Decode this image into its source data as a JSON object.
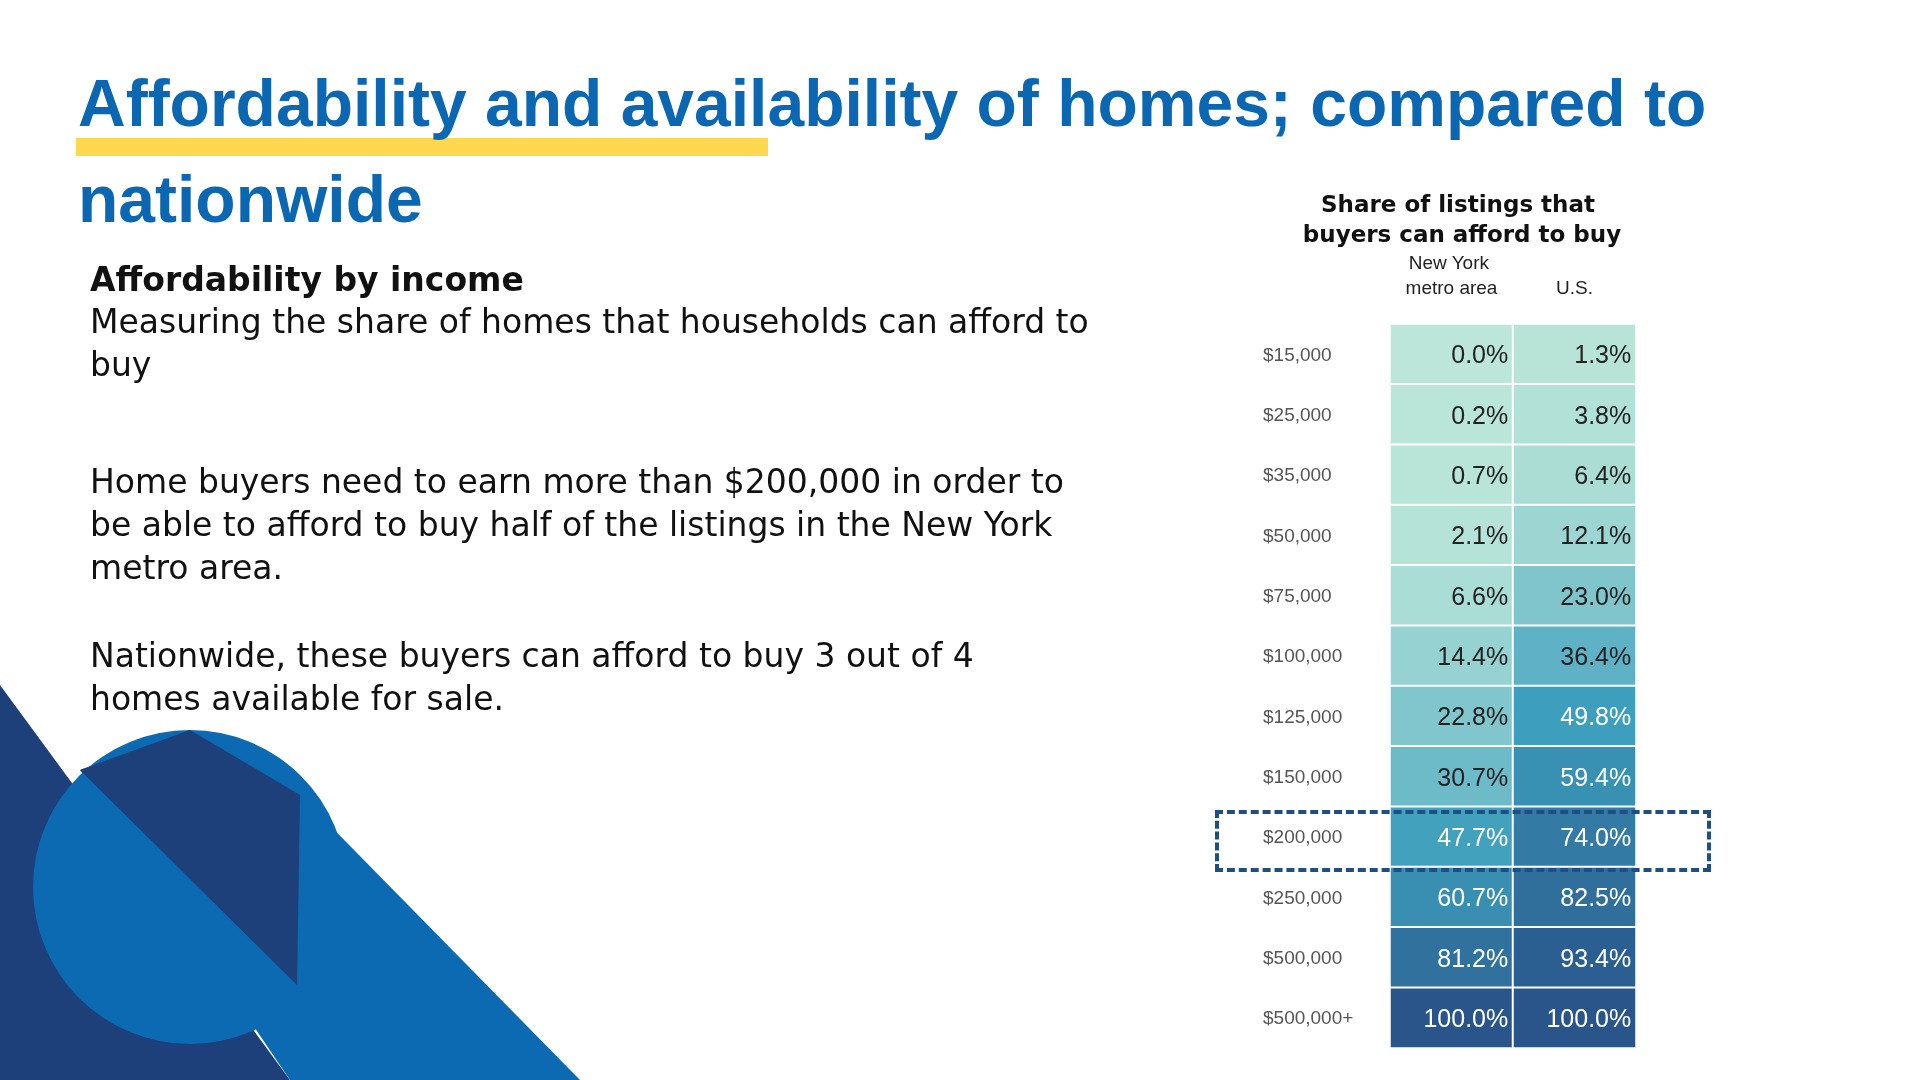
{
  "chart_data": {
    "type": "heatmap",
    "title": "Affordability and availability of homes; compared to nationwide",
    "subtitle": "Share of listings that buyers can afford to buy",
    "annotations": [
      "Affordability by income",
      "Measuring the share of homes that households can afford to buy",
      "Home buyers need to earn more than $200,000 in order to be able to afford to buy half of the listings in the New York metro area.",
      "Nationwide, these buyers can afford to buy 3 out of 4 homes available for sale."
    ],
    "categories": [
      "New York metro area",
      "U.S."
    ],
    "y_categories": [
      "$15,000",
      "$25,000",
      "$35,000",
      "$50,000",
      "$75,000",
      "$100,000",
      "$125,000",
      "$150,000",
      "$200,000",
      "$250,000",
      "$500,000",
      "$500,000+"
    ],
    "cells": [
      [
        0.0,
        1.3
      ],
      [
        0.2,
        3.8
      ],
      [
        0.7,
        6.4
      ],
      [
        2.1,
        12.1
      ],
      [
        6.6,
        23.0
      ],
      [
        14.4,
        36.4
      ],
      [
        22.8,
        49.8
      ],
      [
        30.7,
        59.4
      ],
      [
        47.7,
        74.0
      ],
      [
        60.7,
        82.5
      ],
      [
        81.2,
        93.4
      ],
      [
        100.0,
        100.0
      ]
    ],
    "cell_labels": [
      [
        "0.0%",
        "1.3%"
      ],
      [
        "0.2%",
        "3.8%"
      ],
      [
        "0.7%",
        "6.4%"
      ],
      [
        "2.1%",
        "12.1%"
      ],
      [
        "6.6%",
        "23.0%"
      ],
      [
        "14.4%",
        "36.4%"
      ],
      [
        "22.8%",
        "49.8%"
      ],
      [
        "30.7%",
        "59.4%"
      ],
      [
        "47.7%",
        "74.0%"
      ],
      [
        "60.7%",
        "82.5%"
      ],
      [
        "81.2%",
        "93.4%"
      ],
      [
        "100.0%",
        "100.0%"
      ]
    ]
  }
}
